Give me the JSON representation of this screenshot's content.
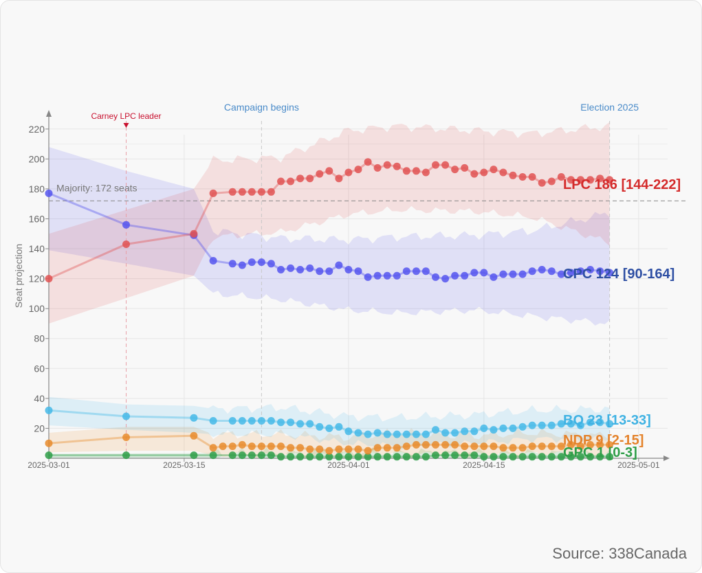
{
  "chart_data": {
    "type": "line",
    "ylabel": "Seat projection",
    "xlabel": "",
    "xlim": [
      "2025-03-01",
      "2025-05-04"
    ],
    "ylim": [
      0,
      230
    ],
    "x_ticks": [
      "2025-03-01",
      "2025-03-15",
      "2025-04-01",
      "2025-04-15",
      "2025-05-01"
    ],
    "y_ticks": [
      20,
      40,
      60,
      80,
      100,
      120,
      140,
      160,
      180,
      200,
      220
    ],
    "grid": true,
    "majority": {
      "value": 172,
      "label": "Majority: 172 seats"
    },
    "events": [
      {
        "date": "2025-03-09",
        "label": "Carney LPC leader",
        "color": "#c8102e"
      },
      {
        "date": "2025-03-23",
        "label": "Campaign begins",
        "color": "#4a8bc9"
      },
      {
        "date": "2025-04-28",
        "label": "Election 2025",
        "color": "#4a8bc9"
      }
    ],
    "series": [
      {
        "key": "GPC",
        "color": "#2e9e48",
        "label": "GPC 1 [0-3]",
        "band_low": [
          [
            0,
            0
          ],
          [
            38,
            0
          ],
          [
            58,
            0
          ]
        ],
        "band_high": [
          [
            0,
            3
          ],
          [
            38,
            4
          ],
          [
            58,
            3
          ]
        ],
        "points": [
          [
            0,
            2
          ],
          [
            8,
            2
          ],
          [
            15,
            2
          ],
          [
            17,
            2
          ],
          [
            19,
            2
          ],
          [
            20,
            2
          ],
          [
            21,
            2
          ],
          [
            22,
            2
          ],
          [
            23,
            2
          ],
          [
            24,
            1
          ],
          [
            25,
            1
          ],
          [
            26,
            1
          ],
          [
            27,
            1
          ],
          [
            28,
            1
          ],
          [
            29,
            1
          ],
          [
            30,
            1
          ],
          [
            31,
            1
          ],
          [
            32,
            1
          ],
          [
            33,
            1
          ],
          [
            34,
            1
          ],
          [
            35,
            1
          ],
          [
            36,
            1
          ],
          [
            37,
            1
          ],
          [
            38,
            1
          ],
          [
            39,
            1
          ],
          [
            40,
            2
          ],
          [
            41,
            2
          ],
          [
            42,
            2
          ],
          [
            43,
            2
          ],
          [
            44,
            2
          ],
          [
            45,
            1
          ],
          [
            46,
            1
          ],
          [
            47,
            1
          ],
          [
            48,
            1
          ],
          [
            49,
            1
          ],
          [
            50,
            1
          ],
          [
            51,
            1
          ],
          [
            52,
            1
          ],
          [
            53,
            1
          ],
          [
            54,
            1
          ],
          [
            55,
            1
          ],
          [
            56,
            1
          ],
          [
            57,
            1
          ],
          [
            58,
            1
          ]
        ]
      },
      {
        "key": "NDP",
        "color": "#e88b2b",
        "label": "NDP 9 [2-15]",
        "band_low": [
          [
            0,
            4
          ],
          [
            8,
            5
          ],
          [
            15,
            5
          ],
          [
            17,
            2
          ],
          [
            24,
            2
          ],
          [
            31,
            2
          ],
          [
            36,
            3
          ],
          [
            44,
            2
          ],
          [
            50,
            3
          ],
          [
            58,
            2
          ]
        ],
        "band_high": [
          [
            0,
            17
          ],
          [
            8,
            21
          ],
          [
            15,
            21
          ],
          [
            17,
            16
          ],
          [
            24,
            16
          ],
          [
            31,
            14
          ],
          [
            36,
            17
          ],
          [
            44,
            15
          ],
          [
            50,
            17
          ],
          [
            58,
            15
          ]
        ],
        "points": [
          [
            0,
            10
          ],
          [
            8,
            14
          ],
          [
            15,
            15
          ],
          [
            17,
            7
          ],
          [
            18,
            8
          ],
          [
            19,
            8
          ],
          [
            20,
            9
          ],
          [
            21,
            8
          ],
          [
            22,
            8
          ],
          [
            23,
            8
          ],
          [
            24,
            8
          ],
          [
            25,
            7
          ],
          [
            26,
            7
          ],
          [
            27,
            6
          ],
          [
            28,
            6
          ],
          [
            29,
            5
          ],
          [
            30,
            6
          ],
          [
            31,
            6
          ],
          [
            32,
            6
          ],
          [
            33,
            5
          ],
          [
            34,
            7
          ],
          [
            35,
            7
          ],
          [
            36,
            7
          ],
          [
            37,
            8
          ],
          [
            38,
            9
          ],
          [
            39,
            9
          ],
          [
            40,
            9
          ],
          [
            41,
            9
          ],
          [
            42,
            9
          ],
          [
            43,
            8
          ],
          [
            44,
            8
          ],
          [
            45,
            8
          ],
          [
            46,
            8
          ],
          [
            47,
            7
          ],
          [
            48,
            7
          ],
          [
            49,
            7
          ],
          [
            50,
            8
          ],
          [
            51,
            8
          ],
          [
            52,
            8
          ],
          [
            53,
            8
          ],
          [
            54,
            9
          ],
          [
            55,
            8
          ],
          [
            56,
            9
          ],
          [
            57,
            9
          ],
          [
            58,
            9
          ]
        ]
      },
      {
        "key": "BQ",
        "color": "#44b8e8",
        "label": "BQ 23 [13-33]",
        "band_low": [
          [
            0,
            22
          ],
          [
            8,
            19
          ],
          [
            15,
            17
          ],
          [
            17,
            16
          ],
          [
            24,
            16
          ],
          [
            31,
            10
          ],
          [
            36,
            8
          ],
          [
            44,
            10
          ],
          [
            50,
            13
          ],
          [
            58,
            13
          ]
        ],
        "band_high": [
          [
            0,
            41
          ],
          [
            8,
            36
          ],
          [
            15,
            35
          ],
          [
            17,
            33
          ],
          [
            24,
            34
          ],
          [
            31,
            28
          ],
          [
            36,
            27
          ],
          [
            44,
            29
          ],
          [
            50,
            32
          ],
          [
            58,
            33
          ]
        ],
        "points": [
          [
            0,
            32
          ],
          [
            8,
            28
          ],
          [
            15,
            27
          ],
          [
            17,
            25
          ],
          [
            19,
            25
          ],
          [
            20,
            25
          ],
          [
            21,
            25
          ],
          [
            22,
            25
          ],
          [
            23,
            25
          ],
          [
            24,
            24
          ],
          [
            25,
            24
          ],
          [
            26,
            23
          ],
          [
            27,
            23
          ],
          [
            28,
            21
          ],
          [
            29,
            20
          ],
          [
            30,
            21
          ],
          [
            31,
            18
          ],
          [
            32,
            17
          ],
          [
            33,
            16
          ],
          [
            34,
            17
          ],
          [
            35,
            16
          ],
          [
            36,
            16
          ],
          [
            37,
            16
          ],
          [
            38,
            16
          ],
          [
            39,
            16
          ],
          [
            40,
            19
          ],
          [
            41,
            17
          ],
          [
            42,
            17
          ],
          [
            43,
            18
          ],
          [
            44,
            18
          ],
          [
            45,
            20
          ],
          [
            46,
            19
          ],
          [
            47,
            20
          ],
          [
            48,
            20
          ],
          [
            49,
            21
          ],
          [
            50,
            22
          ],
          [
            51,
            22
          ],
          [
            52,
            22
          ],
          [
            53,
            23
          ],
          [
            54,
            23
          ],
          [
            55,
            22
          ],
          [
            56,
            24
          ],
          [
            57,
            24
          ],
          [
            58,
            23
          ]
        ]
      },
      {
        "key": "CPC",
        "color": "#5555ee",
        "label": "CPC 124 [90-164]",
        "band_low": [
          [
            0,
            139
          ],
          [
            8,
            130
          ],
          [
            15,
            122
          ],
          [
            17,
            110
          ],
          [
            24,
            106
          ],
          [
            31,
            99
          ],
          [
            36,
            97
          ],
          [
            44,
            99
          ],
          [
            50,
            95
          ],
          [
            58,
            90
          ]
        ],
        "band_high": [
          [
            0,
            208
          ],
          [
            8,
            192
          ],
          [
            15,
            180
          ],
          [
            17,
            152
          ],
          [
            24,
            147
          ],
          [
            31,
            146
          ],
          [
            36,
            148
          ],
          [
            44,
            149
          ],
          [
            50,
            152
          ],
          [
            58,
            164
          ]
        ],
        "points": [
          [
            0,
            177
          ],
          [
            8,
            156
          ],
          [
            15,
            149
          ],
          [
            17,
            132
          ],
          [
            19,
            130
          ],
          [
            20,
            129
          ],
          [
            21,
            131
          ],
          [
            22,
            131
          ],
          [
            23,
            130
          ],
          [
            24,
            126
          ],
          [
            25,
            127
          ],
          [
            26,
            126
          ],
          [
            27,
            127
          ],
          [
            28,
            125
          ],
          [
            29,
            125
          ],
          [
            30,
            129
          ],
          [
            31,
            126
          ],
          [
            32,
            125
          ],
          [
            33,
            121
          ],
          [
            34,
            122
          ],
          [
            35,
            122
          ],
          [
            36,
            122
          ],
          [
            37,
            125
          ],
          [
            38,
            125
          ],
          [
            39,
            125
          ],
          [
            40,
            121
          ],
          [
            41,
            120
          ],
          [
            42,
            122
          ],
          [
            43,
            122
          ],
          [
            44,
            124
          ],
          [
            45,
            124
          ],
          [
            46,
            121
          ],
          [
            47,
            123
          ],
          [
            48,
            123
          ],
          [
            49,
            123
          ],
          [
            50,
            125
          ],
          [
            51,
            126
          ],
          [
            52,
            125
          ],
          [
            53,
            123
          ],
          [
            54,
            124
          ],
          [
            55,
            125
          ],
          [
            56,
            126
          ],
          [
            57,
            125
          ],
          [
            58,
            124
          ]
        ]
      },
      {
        "key": "LPC",
        "color": "#e05252",
        "label": "LPC 186 [144-222]",
        "band_low": [
          [
            0,
            90
          ],
          [
            8,
            107
          ],
          [
            15,
            122
          ],
          [
            17,
            148
          ],
          [
            24,
            151
          ],
          [
            31,
            163
          ],
          [
            36,
            166
          ],
          [
            44,
            165
          ],
          [
            50,
            161
          ],
          [
            58,
            144
          ]
        ],
        "band_high": [
          [
            0,
            150
          ],
          [
            8,
            166
          ],
          [
            15,
            180
          ],
          [
            17,
            199
          ],
          [
            24,
            201
          ],
          [
            31,
            219
          ],
          [
            36,
            222
          ],
          [
            44,
            219
          ],
          [
            50,
            217
          ],
          [
            58,
            222
          ]
        ],
        "points": [
          [
            0,
            120
          ],
          [
            8,
            143
          ],
          [
            15,
            150
          ],
          [
            17,
            177
          ],
          [
            19,
            178
          ],
          [
            20,
            178
          ],
          [
            21,
            178
          ],
          [
            22,
            178
          ],
          [
            23,
            178
          ],
          [
            24,
            185
          ],
          [
            25,
            185
          ],
          [
            26,
            187
          ],
          [
            27,
            187
          ],
          [
            28,
            190
          ],
          [
            29,
            192
          ],
          [
            30,
            187
          ],
          [
            31,
            191
          ],
          [
            32,
            193
          ],
          [
            33,
            198
          ],
          [
            34,
            194
          ],
          [
            35,
            196
          ],
          [
            36,
            195
          ],
          [
            37,
            192
          ],
          [
            38,
            192
          ],
          [
            39,
            191
          ],
          [
            40,
            196
          ],
          [
            41,
            196
          ],
          [
            42,
            193
          ],
          [
            43,
            194
          ],
          [
            44,
            190
          ],
          [
            45,
            191
          ],
          [
            46,
            193
          ],
          [
            47,
            191
          ],
          [
            48,
            189
          ],
          [
            49,
            188
          ],
          [
            50,
            188
          ],
          [
            51,
            184
          ],
          [
            52,
            185
          ],
          [
            53,
            188
          ],
          [
            54,
            186
          ],
          [
            55,
            186
          ],
          [
            56,
            186
          ],
          [
            57,
            187
          ],
          [
            58,
            186
          ]
        ]
      }
    ]
  },
  "source": "Source: 338Canada"
}
